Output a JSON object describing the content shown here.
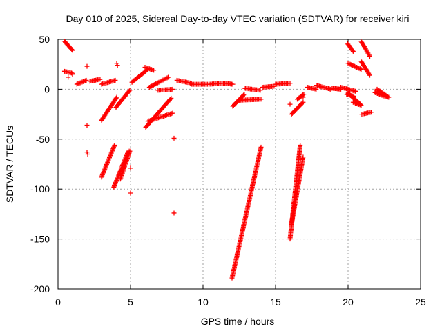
{
  "chart_data": {
    "type": "scatter",
    "title": "Day 010 of 2025, Sidereal Day-to-day VTEC variation (SDTVAR) for receiver kiri",
    "xlabel": "GPS time / hours",
    "ylabel": "SDTVAR / TECUs",
    "xlim": [
      0,
      25
    ],
    "ylim": [
      -200,
      50
    ],
    "xticks": [
      0,
      5,
      10,
      15,
      20,
      25
    ],
    "yticks": [
      -200,
      -150,
      -100,
      -50,
      0,
      50
    ],
    "grid": true,
    "marker": "+",
    "color": "#ff0000",
    "segments": [
      {
        "x": [
          0.45,
          1.0
        ],
        "y": [
          48,
          39
        ]
      },
      {
        "x": [
          0.45,
          1.0
        ],
        "y": [
          18,
          16
        ]
      },
      {
        "x": [
          1.3,
          1.95
        ],
        "y": [
          5,
          9
        ]
      },
      {
        "x": [
          2.2,
          2.9
        ],
        "y": [
          8,
          10
        ]
      },
      {
        "x": [
          3.0,
          3.95
        ],
        "y": [
          5,
          9
        ]
      },
      {
        "x": [
          3.0,
          4.05
        ],
        "y": [
          -31,
          -8
        ]
      },
      {
        "x": [
          4.0,
          4.95
        ],
        "y": [
          -18,
          -1
        ]
      },
      {
        "x": [
          5.1,
          6.2
        ],
        "y": [
          7,
          20
        ]
      },
      {
        "x": [
          6.0,
          6.6
        ],
        "y": [
          22,
          19
        ]
      },
      {
        "x": [
          6.3,
          7.6
        ],
        "y": [
          2,
          12
        ]
      },
      {
        "x": [
          6.9,
          7.9
        ],
        "y": [
          -1,
          0
        ]
      },
      {
        "x": [
          6.05,
          7.8
        ],
        "y": [
          -38,
          -9
        ]
      },
      {
        "x": [
          6.2,
          7.9
        ],
        "y": [
          -32,
          -24
        ]
      },
      {
        "x": [
          8.2,
          9.2
        ],
        "y": [
          9,
          6
        ]
      },
      {
        "x": [
          9.2,
          10.3
        ],
        "y": [
          5,
          5
        ]
      },
      {
        "x": [
          10.4,
          11.4
        ],
        "y": [
          5,
          6
        ]
      },
      {
        "x": [
          11.5,
          12.05
        ],
        "y": [
          6,
          5
        ]
      },
      {
        "x": [
          12.05,
          12.85
        ],
        "y": [
          -17,
          -5
        ]
      },
      {
        "x": [
          12.5,
          14.0
        ],
        "y": [
          -11,
          -10
        ]
      },
      {
        "x": [
          12.85,
          13.95
        ],
        "y": [
          1,
          -1
        ]
      },
      {
        "x": [
          14.1,
          14.9
        ],
        "y": [
          2,
          3
        ]
      },
      {
        "x": [
          15.0,
          16.0
        ],
        "y": [
          5,
          6
        ]
      },
      {
        "x": [
          16.1,
          16.9
        ],
        "y": [
          -25,
          -13
        ]
      },
      {
        "x": [
          16.5,
          16.95
        ],
        "y": [
          -10,
          -5
        ]
      },
      {
        "x": [
          17.2,
          17.8
        ],
        "y": [
          2,
          0
        ]
      },
      {
        "x": [
          17.8,
          18.8
        ],
        "y": [
          4,
          0
        ]
      },
      {
        "x": [
          18.9,
          19.5
        ],
        "y": [
          1,
          0
        ]
      },
      {
        "x": [
          19.5,
          20.5
        ],
        "y": [
          2,
          -2
        ]
      },
      {
        "x": [
          20.0,
          20.85
        ],
        "y": [
          -4,
          -15
        ]
      },
      {
        "x": [
          19.9,
          20.4
        ],
        "y": [
          -5,
          -7
        ]
      },
      {
        "x": [
          20.35,
          20.9
        ],
        "y": [
          -13,
          -16
        ]
      },
      {
        "x": [
          20.0,
          20.9
        ],
        "y": [
          26,
          20
        ]
      },
      {
        "x": [
          19.95,
          20.35
        ],
        "y": [
          46,
          38
        ]
      },
      {
        "x": [
          20.9,
          21.5
        ],
        "y": [
          48,
          33
        ]
      },
      {
        "x": [
          20.9,
          21.5
        ],
        "y": [
          28,
          14
        ]
      },
      {
        "x": [
          20.95,
          21.6
        ],
        "y": [
          -25,
          -23
        ]
      },
      {
        "x": [
          21.8,
          22.7
        ],
        "y": [
          -3,
          -8
        ]
      },
      {
        "x": [
          22.0,
          22.8
        ],
        "y": [
          0,
          -8
        ]
      },
      {
        "x": [
          3.0,
          3.9
        ],
        "y": [
          -88,
          -56
        ]
      },
      {
        "x": [
          3.85,
          4.85
        ],
        "y": [
          -98,
          -62
        ]
      },
      {
        "x": [
          4.3,
          4.95
        ],
        "y": [
          -90,
          -62
        ]
      },
      {
        "x": [
          12.0,
          14.0
        ],
        "y": [
          -189,
          -58
        ]
      },
      {
        "x": [
          16.0,
          16.7
        ],
        "y": [
          -150,
          -56
        ]
      },
      {
        "x": [
          16.1,
          16.9
        ],
        "y": [
          -135,
          -68
        ]
      }
    ],
    "points": [
      {
        "x": 0.7,
        "y": 12
      },
      {
        "x": 1.0,
        "y": 15
      },
      {
        "x": 2.0,
        "y": 23
      },
      {
        "x": 2.0,
        "y": -36
      },
      {
        "x": 2.0,
        "y": -63
      },
      {
        "x": 2.05,
        "y": -65
      },
      {
        "x": 4.05,
        "y": 26
      },
      {
        "x": 4.1,
        "y": 24
      },
      {
        "x": 5.0,
        "y": -79
      },
      {
        "x": 5.0,
        "y": -104
      },
      {
        "x": 8.0,
        "y": -49
      },
      {
        "x": 8.0,
        "y": -124
      },
      {
        "x": 16.0,
        "y": -15
      },
      {
        "x": 16.9,
        "y": -8
      }
    ]
  }
}
